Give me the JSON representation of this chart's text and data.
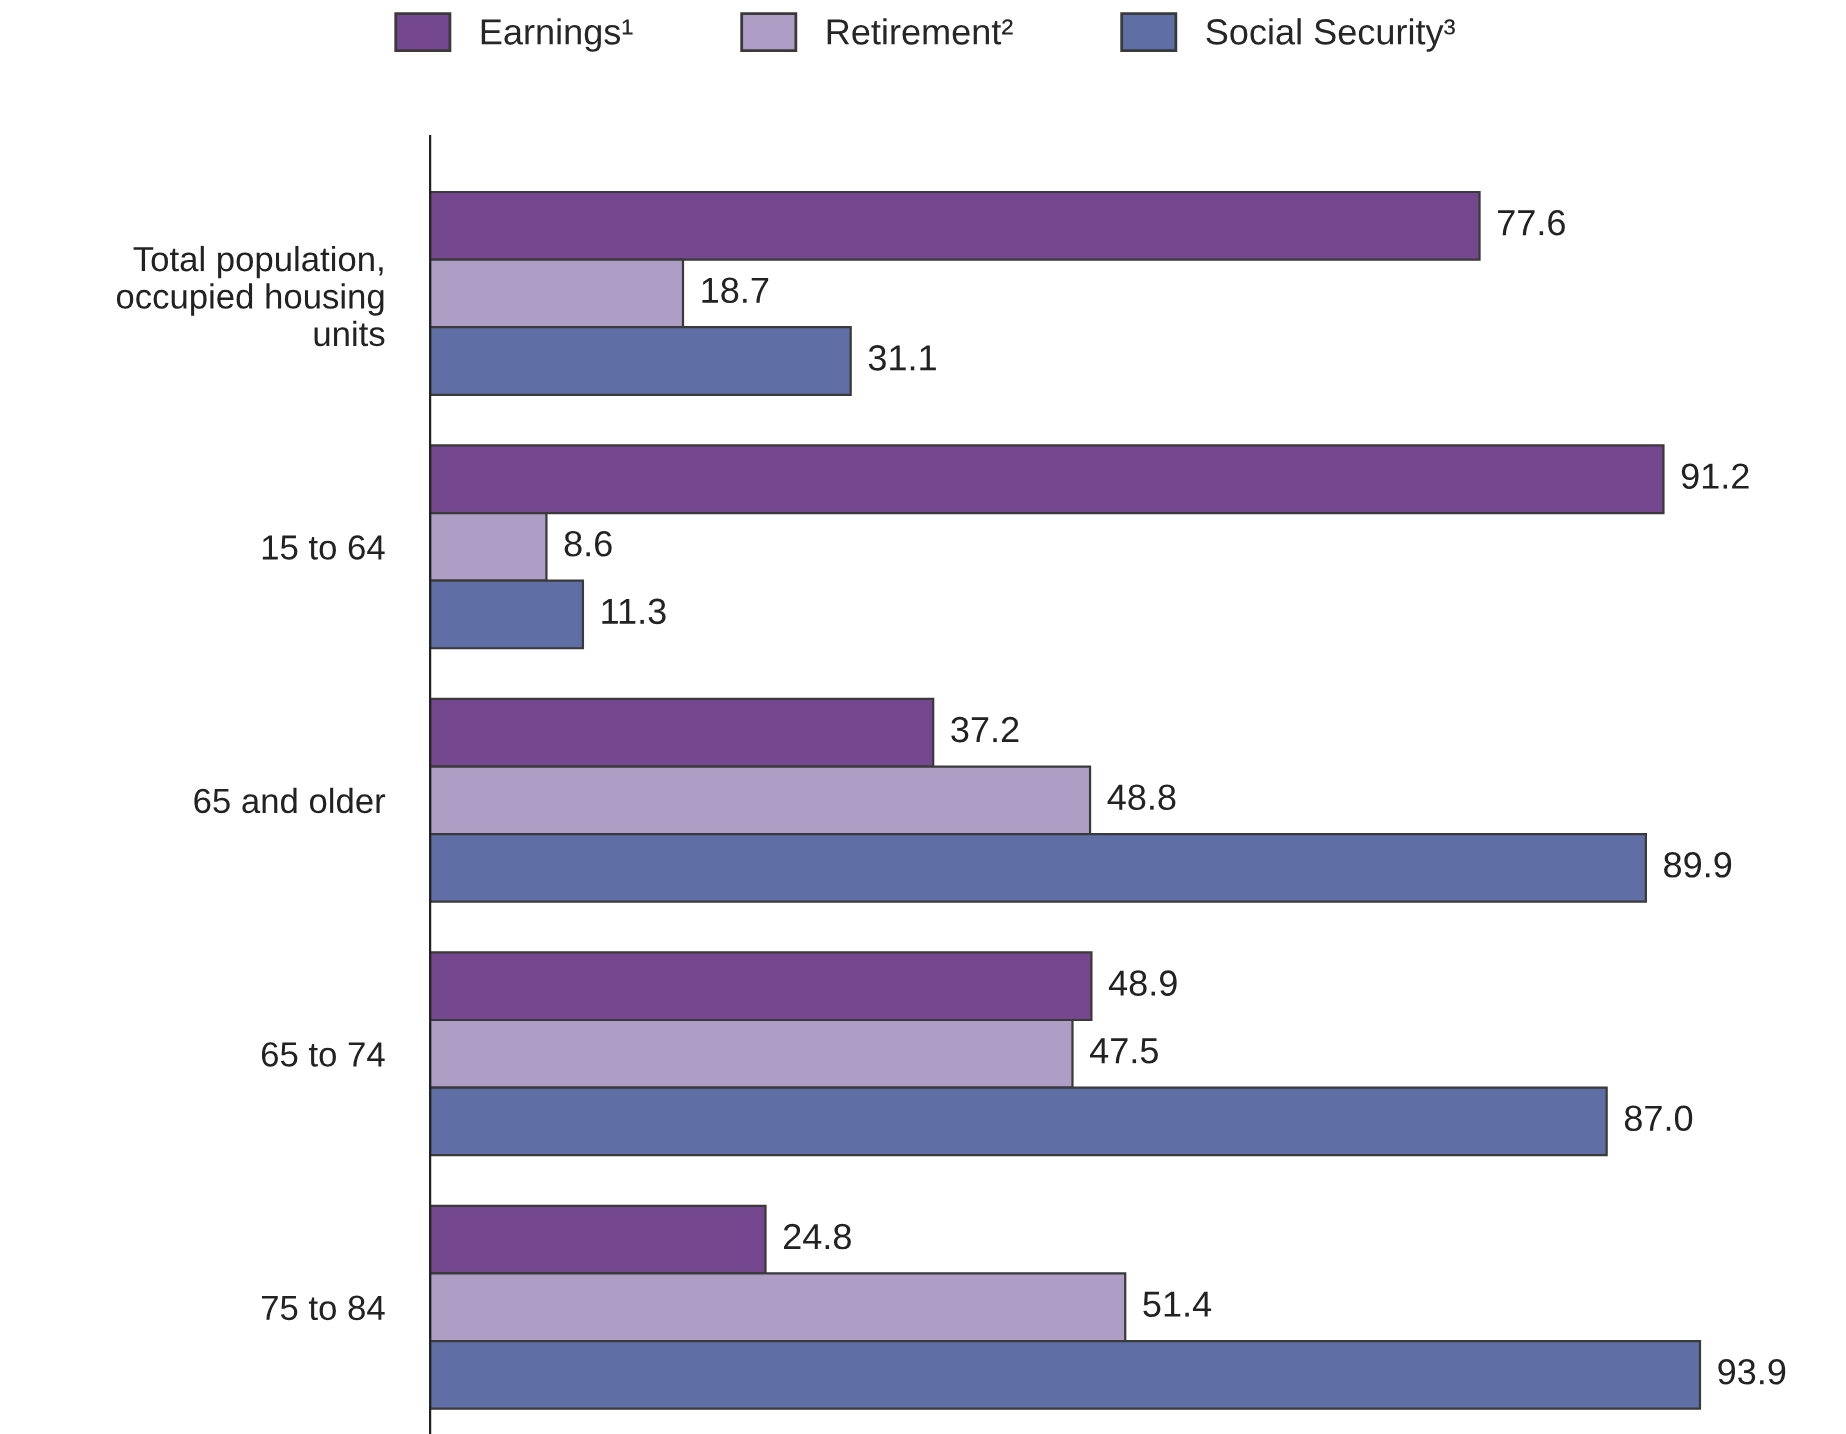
{
  "chart_data": {
    "type": "bar",
    "orientation": "horizontal",
    "legend": "top",
    "grid": false,
    "categories": [
      "Total population,\noccupied housing\nunits",
      "15 to 64",
      "65 and older",
      "65 to 74",
      "75 to 84"
    ],
    "series": [
      {
        "name": "Earnings¹",
        "color": "#74478f",
        "values": [
          77.6,
          91.2,
          37.2,
          48.9,
          24.8
        ],
        "value_labels": [
          "77.6",
          "91.2",
          "37.2",
          "48.9",
          "24.8"
        ]
      },
      {
        "name": "Retirement²",
        "color": "#ae9ec6",
        "values": [
          18.7,
          8.6,
          48.8,
          47.5,
          51.4
        ],
        "value_labels": [
          "18.7",
          "8.6",
          "48.8",
          "47.5",
          "51.4"
        ]
      },
      {
        "name": "Social Security³",
        "color": "#5f6fa6",
        "values": [
          31.1,
          11.3,
          89.9,
          87.0,
          93.9
        ],
        "value_labels": [
          "31.1",
          "11.3",
          "89.9",
          "87.0",
          "93.9"
        ]
      }
    ]
  }
}
